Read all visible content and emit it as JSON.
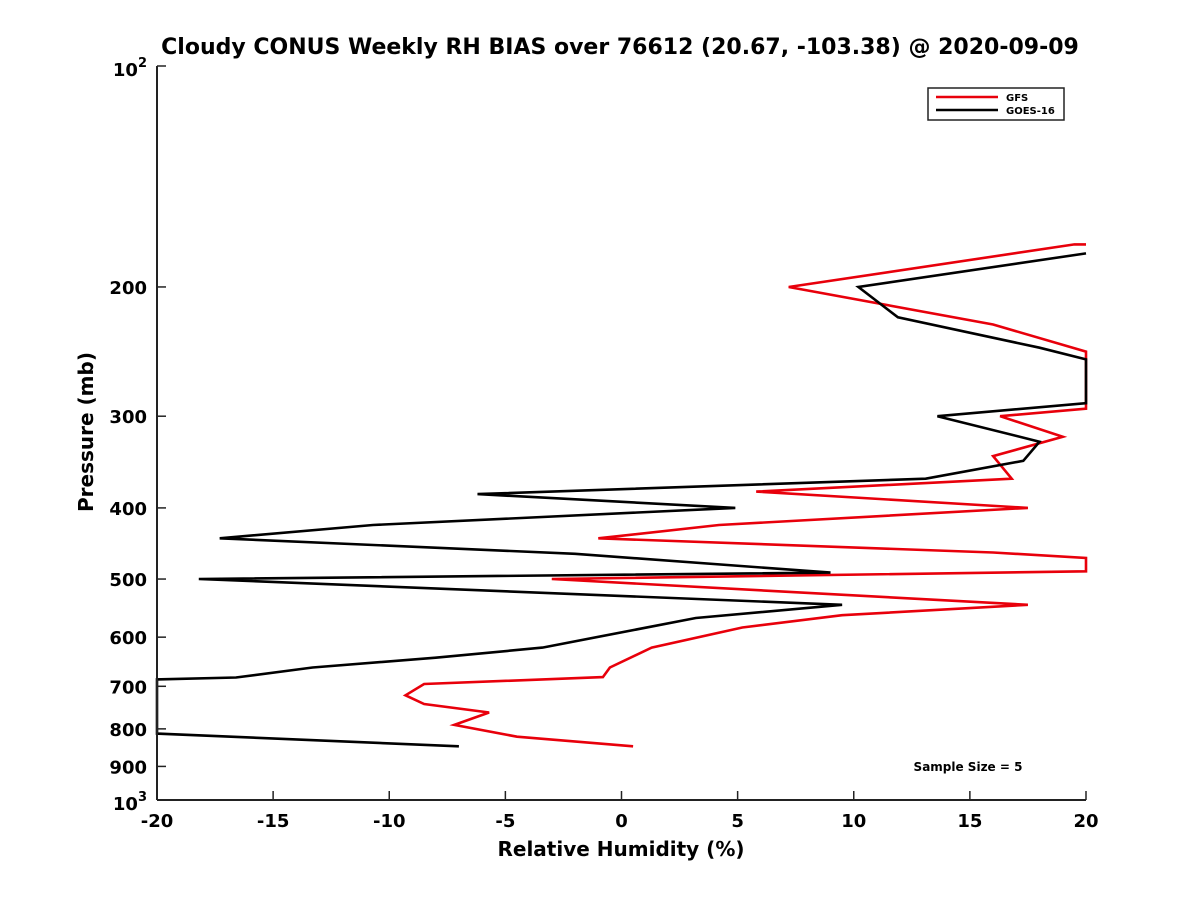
{
  "chart_data": {
    "type": "line",
    "title": "Cloudy CONUS Weekly RH BIAS over 76612 (20.67, -103.38) @ 2020-09-09",
    "xlabel": "Relative Humidity (%)",
    "ylabel": "Pressure (mb)",
    "xlim": [
      -20,
      20
    ],
    "ylim": [
      100,
      1000
    ],
    "yscale": "log",
    "yreverse": true,
    "grid": false,
    "legend_position": "top-right",
    "x_ticks": [
      -20,
      -15,
      -10,
      -5,
      0,
      5,
      10,
      15,
      20
    ],
    "x_tick_labels": [
      "-20",
      "-15",
      "-10",
      "-5",
      "0",
      "5",
      "10",
      "15",
      "20"
    ],
    "y_ticks": [
      200,
      300,
      400,
      500,
      600,
      700,
      800,
      900
    ],
    "y_tick_labels": [
      "200",
      "300",
      "400",
      "500",
      "600",
      "700",
      "800",
      "900"
    ],
    "y_edge_ticks": [
      {
        "value": 100,
        "base": "10",
        "exp": "2"
      },
      {
        "value": 1000,
        "base": "10",
        "exp": "3"
      }
    ],
    "annotation": "Sample Size = 5",
    "series": [
      {
        "name": "GFS",
        "color": "#e8000b",
        "points": [
          [
            20.0,
            175
          ],
          [
            19.5,
            175
          ],
          [
            7.2,
            200
          ],
          [
            16.0,
            225
          ],
          [
            20.0,
            245
          ],
          [
            20.0,
            293
          ],
          [
            16.3,
            300
          ],
          [
            19.0,
            320
          ],
          [
            16.0,
            340
          ],
          [
            16.8,
            365
          ],
          [
            5.8,
            380
          ],
          [
            17.5,
            400
          ],
          [
            4.2,
            422
          ],
          [
            -1.0,
            440
          ],
          [
            16.0,
            460
          ],
          [
            20.0,
            468
          ],
          [
            20.0,
            488
          ],
          [
            -3.0,
            500
          ],
          [
            17.5,
            542
          ],
          [
            9.5,
            560
          ],
          [
            5.2,
            582
          ],
          [
            1.3,
            620
          ],
          [
            -0.5,
            660
          ],
          [
            -0.8,
            680
          ],
          [
            -8.5,
            695
          ],
          [
            -9.3,
            720
          ],
          [
            -8.5,
            740
          ],
          [
            -5.7,
            760
          ],
          [
            -7.2,
            790
          ],
          [
            -4.5,
            820
          ],
          [
            0.5,
            845
          ]
        ]
      },
      {
        "name": "GOES-16",
        "color": "#000000",
        "points": [
          [
            20.0,
            180
          ],
          [
            10.2,
            200
          ],
          [
            11.9,
            220
          ],
          [
            18.0,
            242
          ],
          [
            20.0,
            251
          ],
          [
            20.0,
            288
          ],
          [
            13.6,
            300
          ],
          [
            18.0,
            325
          ],
          [
            17.3,
            345
          ],
          [
            13.1,
            365
          ],
          [
            -6.2,
            383
          ],
          [
            4.9,
            400
          ],
          [
            -10.7,
            422
          ],
          [
            -17.3,
            440
          ],
          [
            -2.0,
            462
          ],
          [
            9.0,
            490
          ],
          [
            -18.2,
            500
          ],
          [
            9.5,
            542
          ],
          [
            3.2,
            565
          ],
          [
            -3.4,
            620
          ],
          [
            -8.0,
            640
          ],
          [
            -13.3,
            660
          ],
          [
            -16.6,
            681
          ],
          [
            -20.0,
            685
          ],
          [
            -20.0,
            812
          ],
          [
            -7.0,
            845
          ]
        ]
      }
    ]
  }
}
